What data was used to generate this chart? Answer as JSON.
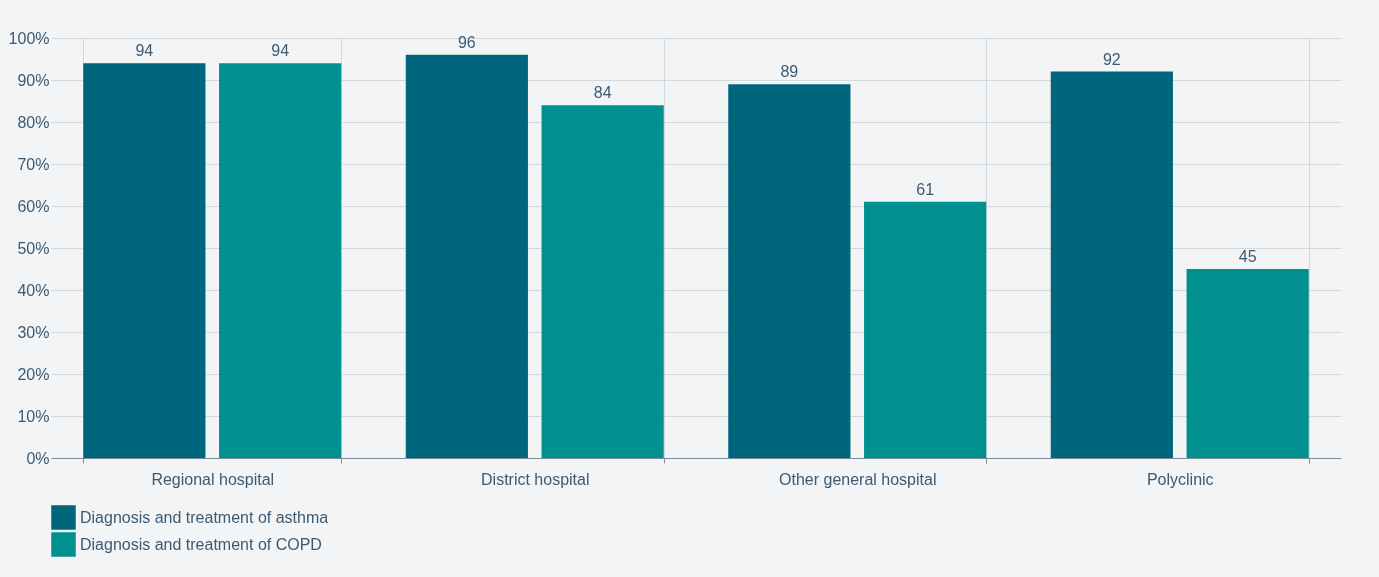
{
  "chart_data": {
    "type": "bar",
    "categories": [
      "Regional hospital",
      "District hospital",
      "Other general hospital",
      "Polyclinic"
    ],
    "series": [
      {
        "name": "Diagnosis and treatment of asthma",
        "color": "#00667e",
        "values": [
          94,
          96,
          89,
          92
        ]
      },
      {
        "name": "Diagnosis and treatment of COPD",
        "color": "#00908f",
        "values": [
          94,
          84,
          61,
          45
        ]
      }
    ],
    "ylim": [
      0,
      100
    ],
    "yticks": [
      {
        "value": 0,
        "label": "0%"
      },
      {
        "value": 10,
        "label": "10%"
      },
      {
        "value": 20,
        "label": "20%"
      },
      {
        "value": 30,
        "label": "30%"
      },
      {
        "value": 40,
        "label": "40%"
      },
      {
        "value": 50,
        "label": "50%"
      },
      {
        "value": 60,
        "label": "60%"
      },
      {
        "value": 70,
        "label": "70%"
      },
      {
        "value": 80,
        "label": "80%"
      },
      {
        "value": 90,
        "label": "90%"
      },
      {
        "value": 100,
        "label": "100%"
      }
    ],
    "grid": true,
    "legend": "bottom left",
    "data_labels": true
  }
}
